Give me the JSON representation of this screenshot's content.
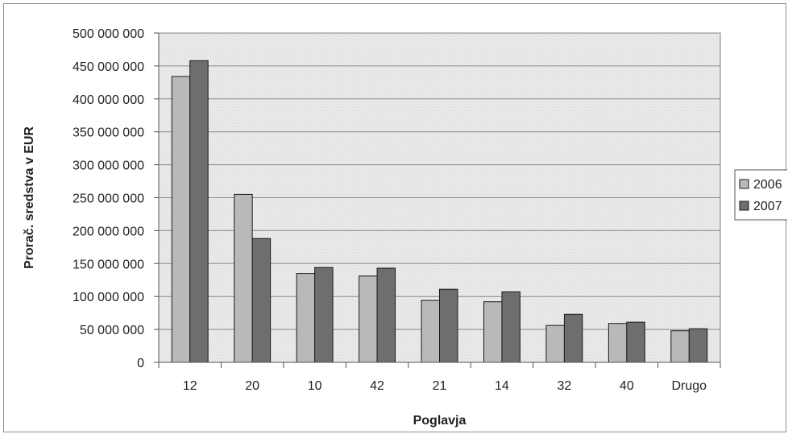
{
  "chart_data": {
    "type": "bar",
    "title": "",
    "xlabel": "Poglavja",
    "ylabel": "Prorač. sredstva v EUR",
    "categories": [
      "12",
      "20",
      "10",
      "42",
      "21",
      "14",
      "32",
      "40",
      "Drugo"
    ],
    "series": [
      {
        "name": "2006",
        "color": "#b9b9b9",
        "values": [
          434000000,
          255000000,
          135000000,
          131000000,
          94000000,
          92000000,
          56000000,
          59000000,
          48000000
        ]
      },
      {
        "name": "2007",
        "color": "#6e6e6e",
        "values": [
          458000000,
          188000000,
          144000000,
          143000000,
          111000000,
          107000000,
          73000000,
          61000000,
          51000000
        ]
      }
    ],
    "ylim": [
      0,
      500000000
    ],
    "yticks": [
      "0",
      "50 000 000",
      "100 000 000",
      "150 000 000",
      "200 000 000",
      "250 000 000",
      "300 000 000",
      "350 000 000",
      "400 000 000",
      "450 000 000",
      "500 000 000"
    ],
    "grid": true,
    "legend": "right",
    "plot_background": "#e8e8e8"
  }
}
